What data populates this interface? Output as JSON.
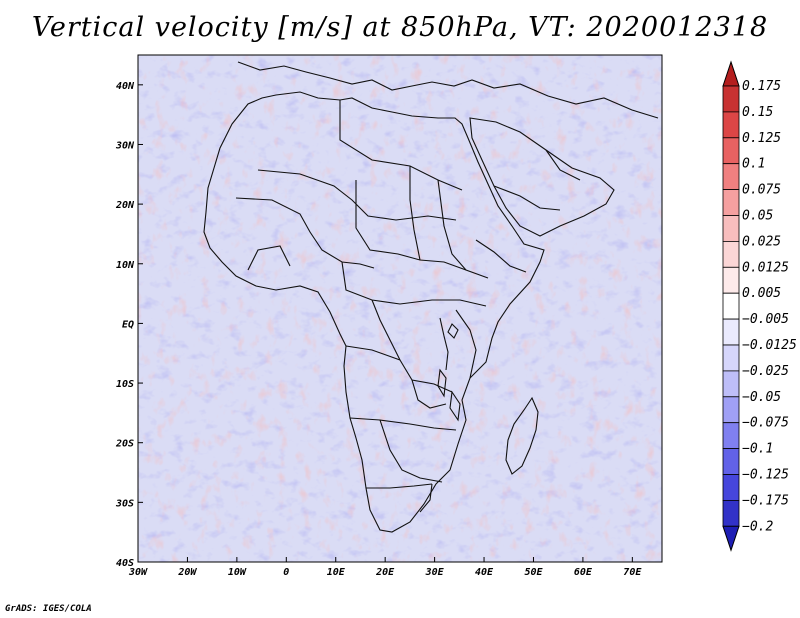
{
  "title": "Vertical velocity [m/s] at 850hPa, VT: 2020012318",
  "credit": "GrADS: IGES/COLA",
  "map": {
    "lon_range": [
      -30,
      76
    ],
    "lat_range": [
      -40,
      45
    ],
    "x_ticks": [
      {
        "lon": -30,
        "label": "30W"
      },
      {
        "lon": -20,
        "label": "20W"
      },
      {
        "lon": -10,
        "label": "10W"
      },
      {
        "lon": 0,
        "label": "0"
      },
      {
        "lon": 10,
        "label": "10E"
      },
      {
        "lon": 20,
        "label": "20E"
      },
      {
        "lon": 30,
        "label": "30E"
      },
      {
        "lon": 40,
        "label": "40E"
      },
      {
        "lon": 50,
        "label": "50E"
      },
      {
        "lon": 60,
        "label": "60E"
      },
      {
        "lon": 70,
        "label": "70E"
      }
    ],
    "y_ticks": [
      {
        "lat": 40,
        "label": "40N"
      },
      {
        "lat": 30,
        "label": "30N"
      },
      {
        "lat": 20,
        "label": "20N"
      },
      {
        "lat": 10,
        "label": "10N"
      },
      {
        "lat": 0,
        "label": "EQ"
      },
      {
        "lat": -10,
        "label": "10S"
      },
      {
        "lat": -20,
        "label": "20S"
      },
      {
        "lat": -30,
        "label": "30S"
      },
      {
        "lat": -40,
        "label": "40S"
      }
    ]
  },
  "colorbar": {
    "labels": [
      "0.175",
      "0.15",
      "0.125",
      "0.1",
      "0.075",
      "0.05",
      "0.025",
      "0.0125",
      "0.005",
      "−0.005",
      "−0.0125",
      "−0.025",
      "−0.05",
      "−0.075",
      "−0.1",
      "−0.125",
      "−0.175",
      "−0.2"
    ],
    "colors": [
      "#b41e1e",
      "#c83232",
      "#dc4646",
      "#e86262",
      "#f08080",
      "#f5a0a0",
      "#f8bebe",
      "#fbd6d6",
      "#fdeaea",
      "#ffffff",
      "#eaeafd",
      "#d6d6fb",
      "#bebef8",
      "#a0a0f5",
      "#8080f0",
      "#6262e8",
      "#4646dc",
      "#3232c8",
      "#1e1eb4"
    ]
  },
  "colors": {
    "background": "#ffffff",
    "land_base": "#ead9ea",
    "ocean_base": "#d9dcf6",
    "up": "#e05050",
    "down": "#5050d8",
    "boundary": "#111111"
  }
}
